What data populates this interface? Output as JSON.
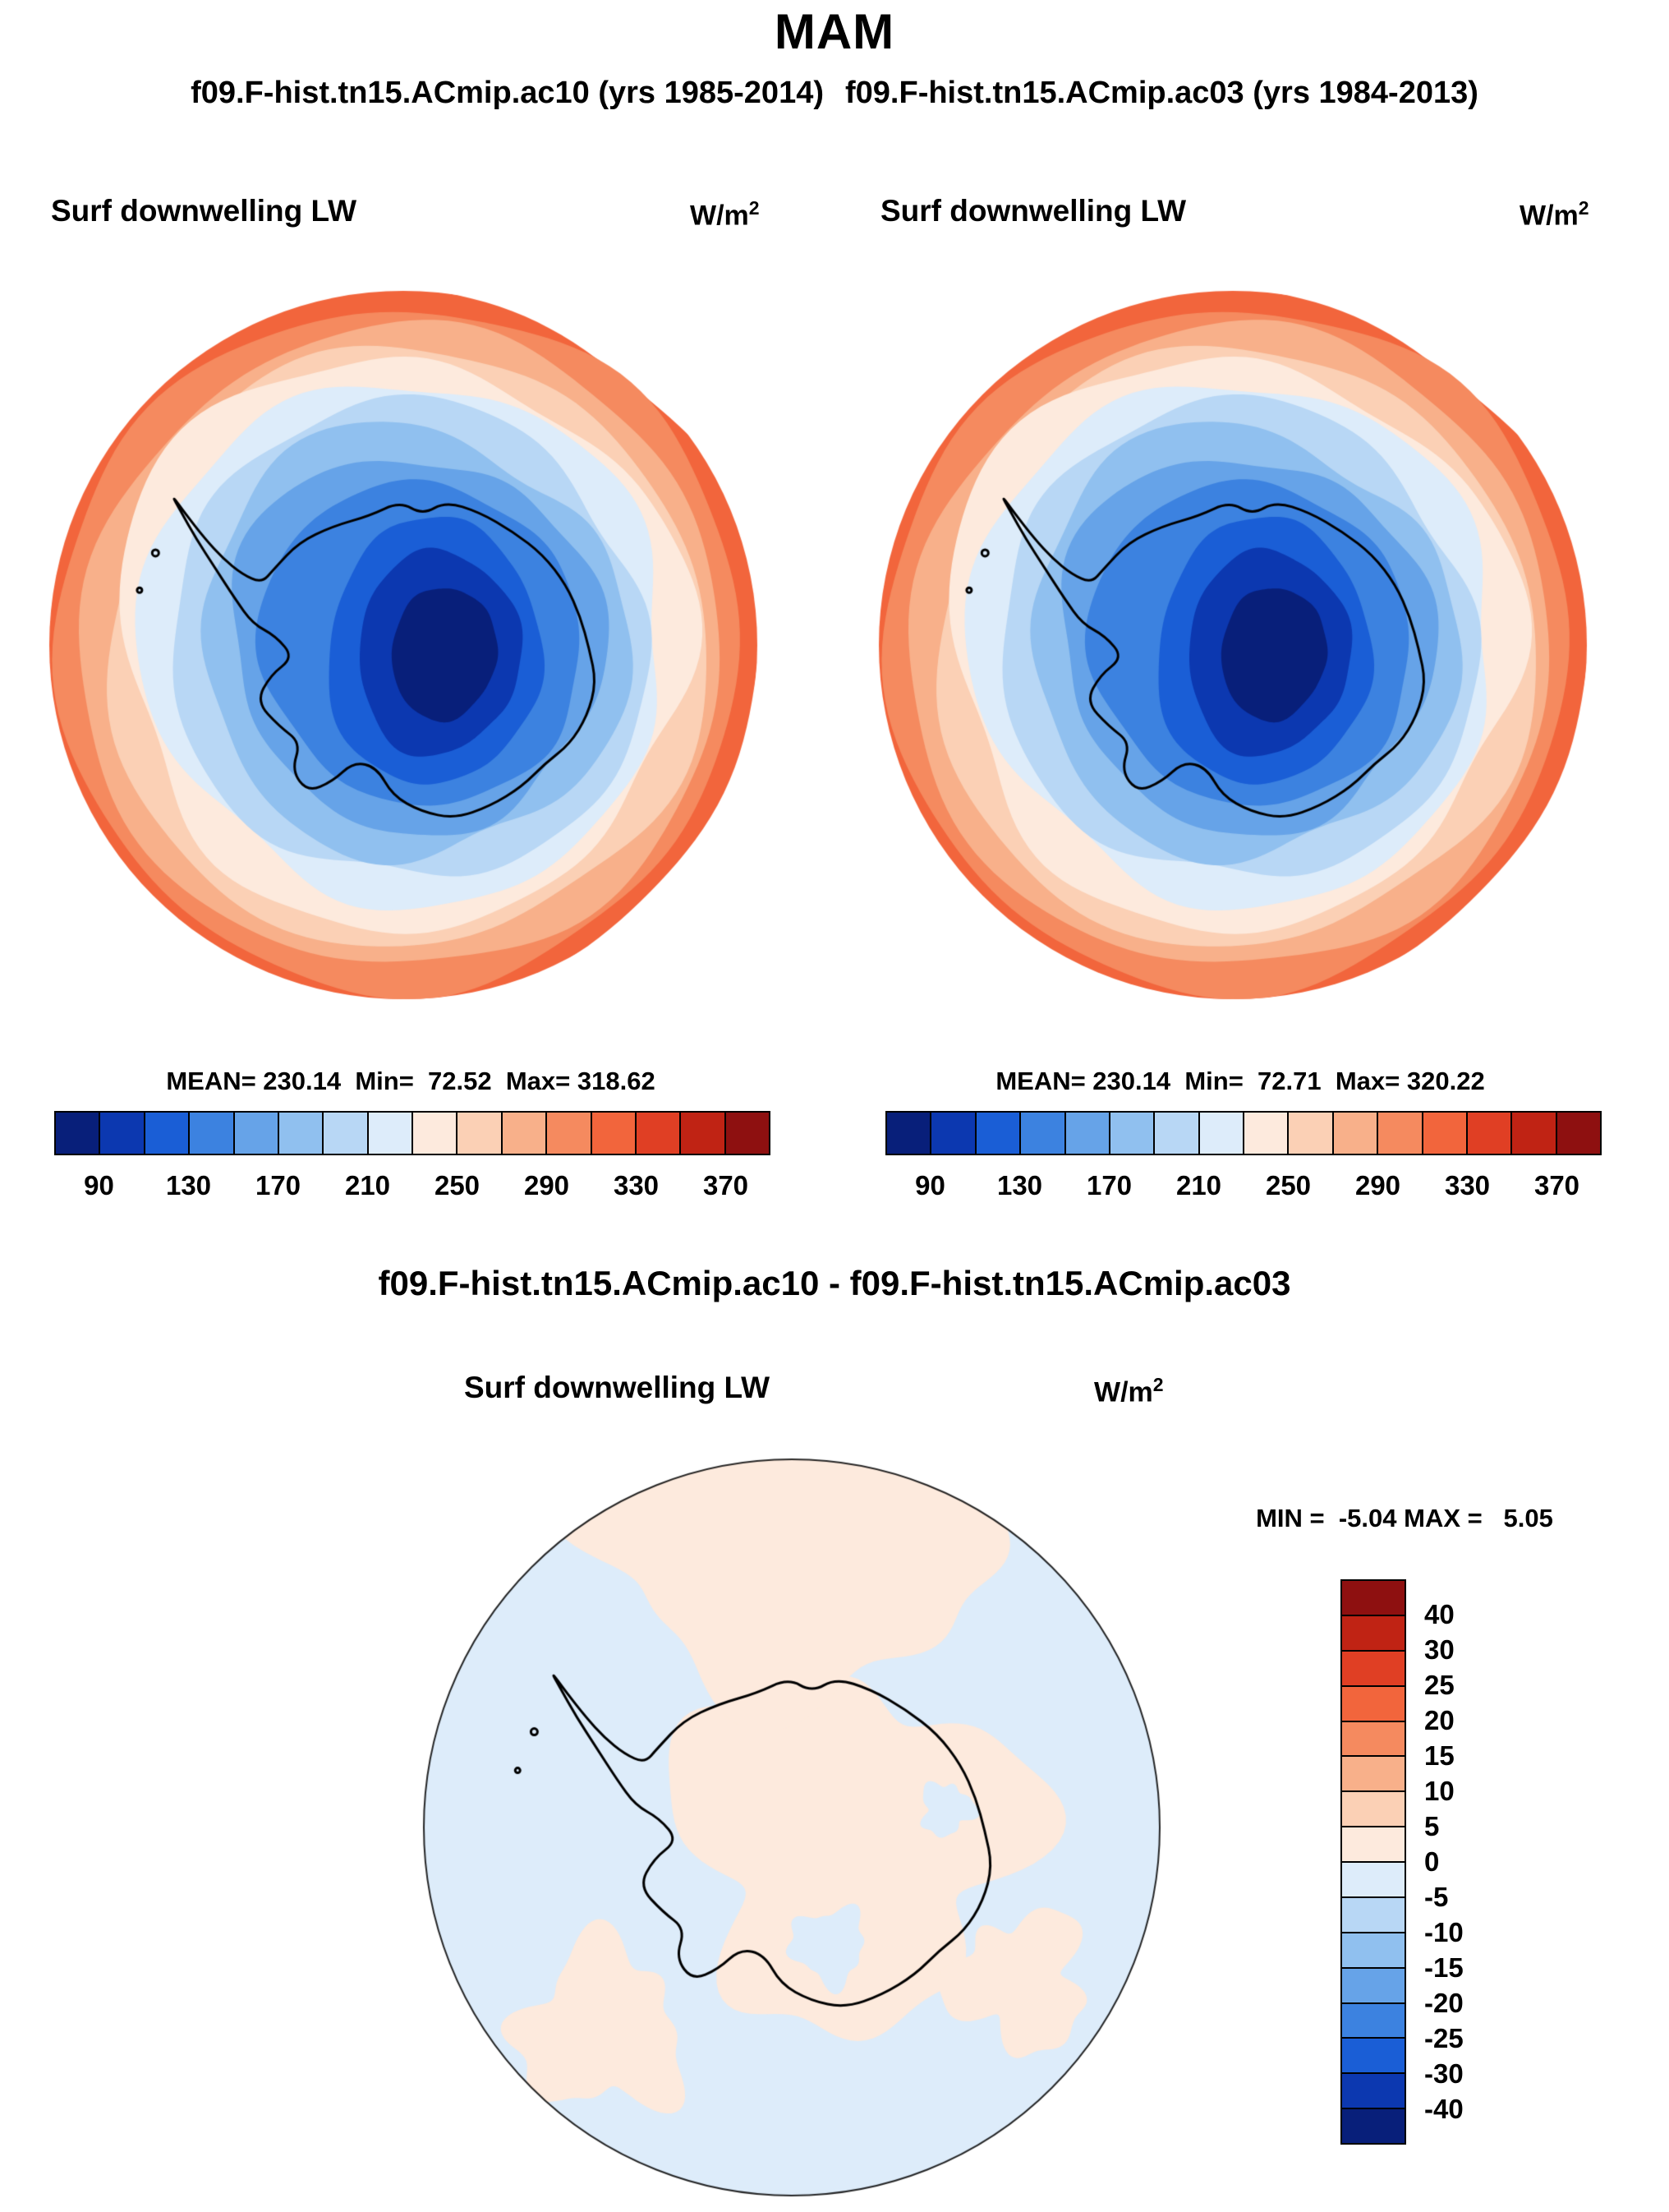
{
  "title": "MAM",
  "subtitle_left": "f09.F-hist.tn15.ACmip.ac10 (yrs 1985-2014)",
  "subtitle_right": "f09.F-hist.tn15.ACmip.ac03 (yrs 1984-2013)",
  "diff_title": "f09.F-hist.tn15.ACmip.ac10 - f09.F-hist.tn15.ACmip.ac03",
  "panels": [
    {
      "var_label": "Surf downwelling LW",
      "units_base": "W/m",
      "units_exp": "2",
      "stats": "MEAN= 230.14  Min=  72.52  Max= 318.62"
    },
    {
      "var_label": "Surf downwelling LW",
      "units_base": "W/m",
      "units_exp": "2",
      "stats": "MEAN= 230.14  Min=  72.71  Max= 320.22"
    },
    {
      "var_label": "Surf downwelling LW",
      "units_base": "W/m",
      "units_exp": "2",
      "minmax": "MIN =  -5.04 MAX =   5.05"
    }
  ],
  "colorbar": {
    "ticks": [
      "90",
      "130",
      "170",
      "210",
      "250",
      "290",
      "330",
      "370"
    ],
    "colors": [
      "#081f7a",
      "#0c38b0",
      "#1a5ed6",
      "#3c82e0",
      "#66a3e8",
      "#90c0ef",
      "#b8d7f5",
      "#ddecfa",
      "#fdeadd",
      "#fbd0b5",
      "#f8b08a",
      "#f58a5f",
      "#f2653c",
      "#e03f24",
      "#c02314",
      "#8e1010"
    ]
  },
  "diff_colorbar": {
    "ticks": [
      "40",
      "30",
      "25",
      "20",
      "15",
      "10",
      "5",
      "0",
      "-5",
      "-10",
      "-15",
      "-20",
      "-25",
      "-30",
      "-40"
    ],
    "colors": [
      "#8e1010",
      "#c02314",
      "#e03f24",
      "#f2653c",
      "#f58a5f",
      "#f8b08a",
      "#fbd0b5",
      "#fdeadd",
      "#ddecfa",
      "#b8d7f5",
      "#90c0ef",
      "#66a3e8",
      "#3c82e0",
      "#1a5ed6",
      "#0c38b0",
      "#081f7a"
    ]
  },
  "map_colors": {
    "bands_edge_to_center": [
      "#f2653c",
      "#f58a5f",
      "#f8b08a",
      "#fbd0b5",
      "#fdeadd",
      "#ddecfa",
      "#b8d7f5",
      "#90c0ef",
      "#66a3e8",
      "#3c82e0",
      "#1a5ed6",
      "#0c38b0",
      "#081f7a"
    ],
    "diff_background": "#ddecfa",
    "diff_patch": "#fdeadd",
    "coastline": "#000000"
  },
  "chart_data": [
    {
      "type": "heatmap",
      "projection": "south_polar_stereographic",
      "title": "Surf downwelling LW",
      "run": "f09.F-hist.tn15.ACmip.ac10",
      "years": "1985-2014",
      "units": "W/m2",
      "mean": 230.14,
      "min": 72.52,
      "max": 318.62,
      "colorbar_levels": [
        90,
        130,
        170,
        210,
        250,
        290,
        330,
        370
      ],
      "palette": "blue-white-red diverging, 16 steps from 70 to 390 by 20",
      "spatial_pattern": "minimum (~90-130) over East Antarctic plateau, increasing outward through coast, maximum (~310-350) over surrounding Southern Ocean at the map rim"
    },
    {
      "type": "heatmap",
      "projection": "south_polar_stereographic",
      "title": "Surf downwelling LW",
      "run": "f09.F-hist.tn15.ACmip.ac03",
      "years": "1984-2013",
      "units": "W/m2",
      "mean": 230.14,
      "min": 72.71,
      "max": 320.22,
      "colorbar_levels": [
        90,
        130,
        170,
        210,
        250,
        290,
        330,
        370
      ],
      "palette": "blue-white-red diverging, 16 steps from 70 to 390 by 20",
      "spatial_pattern": "nearly identical to the ac10 panel"
    },
    {
      "type": "heatmap",
      "projection": "south_polar_stereographic",
      "title": "Surf downwelling LW difference",
      "run": "f09.F-hist.tn15.ACmip.ac10 - f09.F-hist.tn15.ACmip.ac03",
      "units": "W/m2",
      "min": -5.04,
      "max": 5.05,
      "colorbar_levels": [
        40,
        30,
        25,
        20,
        15,
        10,
        5,
        0,
        -5,
        -10,
        -15,
        -20,
        -25,
        -30,
        -40
      ],
      "spatial_pattern": "small differences within +/-5 W/m2; mixture of light blue (-5 to 0) background and light peach (0 to 5) patches over the interior and north sector"
    }
  ]
}
